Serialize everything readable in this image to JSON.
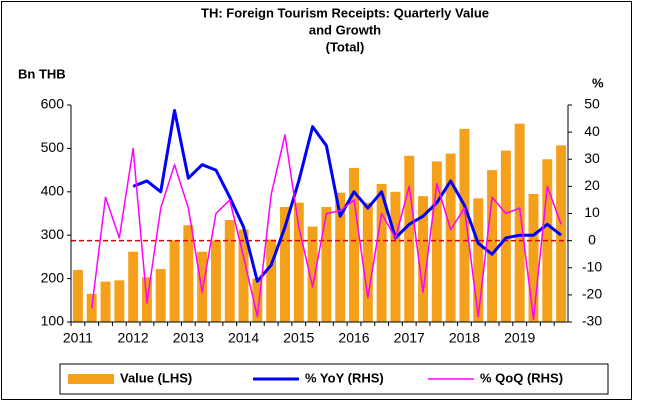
{
  "chart_data": {
    "type": "bar-line",
    "title": [
      "TH: Foreign Tourism Receipts: Quarterly Value",
      "and Growth",
      "(Total)"
    ],
    "y_label": "Bn THB",
    "y2_label": "%",
    "categories": [
      "2011",
      null,
      null,
      null,
      "2012",
      null,
      null,
      null,
      "2013",
      null,
      null,
      null,
      "2014",
      null,
      null,
      null,
      "2015",
      null,
      null,
      null,
      "2016",
      null,
      null,
      null,
      "2017",
      null,
      null,
      null,
      "2018",
      null,
      null,
      null,
      "2019",
      null,
      null,
      null
    ],
    "series": [
      {
        "name": "Value (LHS)",
        "type": "bar",
        "color": "#f5a01a",
        "axis": "y",
        "values": [
          220,
          165,
          193,
          196,
          262,
          203,
          222,
          288,
          323,
          262,
          288,
          335,
          313,
          200,
          290,
          365,
          375,
          320,
          365,
          398,
          455,
          375,
          418,
          400,
          483,
          390,
          470,
          488,
          545,
          385,
          450,
          495,
          557,
          395,
          475,
          507
        ]
      },
      {
        "name": "% YoY (RHS)",
        "type": "line",
        "color": "#0000ff",
        "axis": "y2",
        "values": [
          null,
          null,
          null,
          null,
          20,
          22,
          18,
          48,
          23,
          28,
          26,
          16,
          5,
          -15,
          -9,
          5,
          22,
          42,
          35,
          9,
          18,
          12,
          18,
          1,
          6,
          9,
          14,
          22,
          13,
          -1,
          -5,
          1,
          2,
          2,
          6,
          2
        ]
      },
      {
        "name": "% QoQ (RHS)",
        "type": "line",
        "color": "#ff00ff",
        "axis": "y2",
        "values": [
          null,
          -25,
          16,
          1,
          34,
          -23,
          12,
          28,
          12,
          -19,
          10,
          15,
          -6,
          -28,
          17,
          39,
          5,
          -17,
          10,
          11,
          15,
          -21,
          10,
          1,
          20,
          -19,
          21,
          4,
          12,
          -28,
          16,
          10,
          12,
          -29,
          20,
          6
        ]
      }
    ],
    "ylim": [
      100,
      600
    ],
    "yticks": [
      100,
      200,
      300,
      400,
      500,
      600
    ],
    "y2lim": [
      -30,
      50
    ],
    "y2ticks": [
      -30,
      -20,
      -10,
      0,
      10,
      20,
      30,
      40,
      50
    ],
    "reference_line_y2": {
      "value": 0,
      "color": "#e00000"
    },
    "legend": "bottom"
  }
}
